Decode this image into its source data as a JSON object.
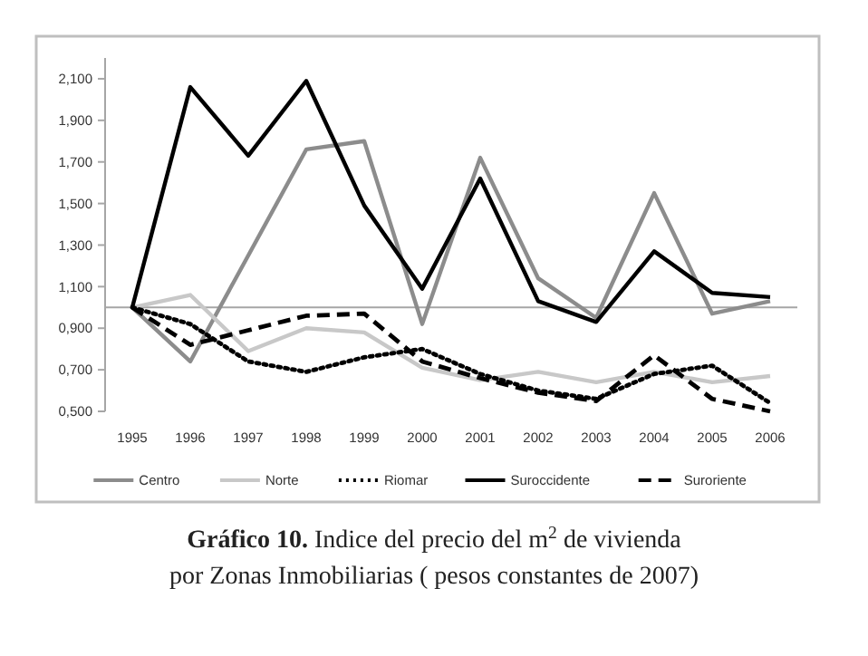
{
  "chart_data": {
    "type": "line",
    "title": "Gráfico 10.",
    "subtitle": "Indice del precio del m$^{2}$ de vivienda por Zonas Inmobiliarias ( pesos constantes de 2007)",
    "categories": [
      "1995",
      "1996",
      "1997",
      "1998",
      "1999",
      "2000",
      "2001",
      "2002",
      "2003",
      "2004",
      "2005",
      "2006"
    ],
    "ylim": [
      0.5,
      2.2
    ],
    "yticks": [
      {
        "value": 0.5,
        "label": "0,500"
      },
      {
        "value": 0.7,
        "label": "0,700"
      },
      {
        "value": 0.9,
        "label": "0,900"
      },
      {
        "value": 1.1,
        "label": "1,100"
      },
      {
        "value": 1.3,
        "label": "1,300"
      },
      {
        "value": 1.5,
        "label": "1,500"
      },
      {
        "value": 1.7,
        "label": "1,700"
      },
      {
        "value": 1.9,
        "label": "1,900"
      },
      {
        "value": 2.1,
        "label": "2,100"
      }
    ],
    "ref_lines": [
      {
        "axis": "y",
        "value": 1,
        "color": "#a6a6a6"
      }
    ],
    "legend": "bottom",
    "grid": false,
    "marker": "none",
    "series": [
      {
        "name": "Centro",
        "color": "#8c8c8c",
        "line_style": "solid",
        "values": [
          1.0,
          0.74,
          1.25,
          1.76,
          1.8,
          0.92,
          1.72,
          1.14,
          0.95,
          1.55,
          0.97,
          1.03
        ]
      },
      {
        "name": "Norte",
        "color": "#c8c8c8",
        "line_style": "solid",
        "values": [
          1.0,
          1.06,
          0.79,
          0.9,
          0.88,
          0.71,
          0.65,
          0.69,
          0.64,
          0.69,
          0.64,
          0.67
        ]
      },
      {
        "name": "Riomar",
        "color": "#000000",
        "line_style": "dotted",
        "values": [
          1.0,
          0.92,
          0.74,
          0.69,
          0.76,
          0.8,
          0.68,
          0.6,
          0.56,
          0.68,
          0.72,
          0.54
        ]
      },
      {
        "name": "Suroccidente",
        "color": "#000000",
        "line_style": "solid",
        "values": [
          1.0,
          2.06,
          1.73,
          2.09,
          1.49,
          1.09,
          1.62,
          1.03,
          0.93,
          1.27,
          1.07,
          1.05
        ]
      },
      {
        "name": "Suroriente",
        "color": "#000000",
        "line_style": "dashed",
        "values": [
          1.0,
          0.82,
          0.89,
          0.96,
          0.97,
          0.74,
          0.66,
          0.59,
          0.55,
          0.77,
          0.56,
          0.5
        ]
      }
    ]
  }
}
